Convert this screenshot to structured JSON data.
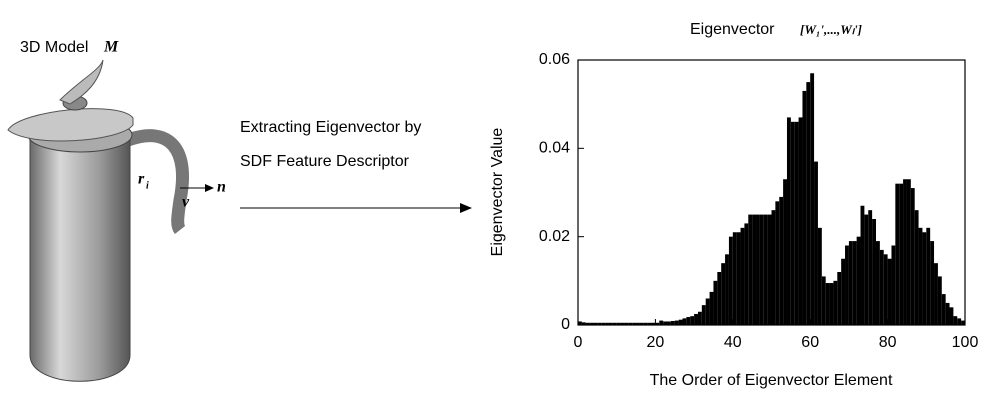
{
  "model_panel": {
    "label": "3D Model",
    "symbol": "M",
    "radius_symbol": "r",
    "radius_index": "i",
    "view_symbol": "v",
    "normal_symbol": "n"
  },
  "arrow_caption": [
    "Extracting Eigenvector by",
    "SDF Feature Descriptor"
  ],
  "chart_data": {
    "type": "histogram",
    "title": "Eigenvector",
    "title_formula": "[W₁',...,Wₗ']",
    "x_label": "The Order of Eigenvector Element",
    "y_label": "Eigenvector Value",
    "color": "#000000",
    "bins": [
      0,
      1,
      2,
      3,
      4,
      5,
      6,
      7,
      8,
      9,
      10,
      11,
      12,
      13,
      14,
      15,
      16,
      17,
      18,
      19,
      20,
      21,
      22,
      23,
      24,
      25,
      26,
      27,
      28,
      29,
      30,
      31,
      32,
      33,
      34,
      35,
      36,
      37,
      38,
      39,
      40,
      41,
      42,
      43,
      44,
      45,
      46,
      47,
      48,
      49,
      50,
      51,
      52,
      53,
      54,
      55,
      56,
      57,
      58,
      59,
      60,
      61,
      62,
      63,
      64,
      65,
      66,
      67,
      68,
      69,
      70,
      71,
      72,
      73,
      74,
      75,
      76,
      77,
      78,
      79,
      80,
      81,
      82,
      83,
      84,
      85,
      86,
      87,
      88,
      89,
      90,
      91,
      92,
      93,
      94,
      95,
      96,
      97,
      98,
      99,
      100
    ],
    "values": [
      0.0008,
      0.0006,
      0.0005,
      0.0005,
      0.0005,
      0.0005,
      0.0005,
      0.0005,
      0.0005,
      0.0005,
      0.0005,
      0.0005,
      0.0005,
      0.0005,
      0.0005,
      0.0005,
      0.0005,
      0.0005,
      0.0005,
      0.0005,
      0.0005,
      0.001,
      0.0008,
      0.0008,
      0.0009,
      0.001,
      0.0012,
      0.0015,
      0.0018,
      0.002,
      0.0025,
      0.003,
      0.0045,
      0.006,
      0.0075,
      0.01,
      0.012,
      0.014,
      0.016,
      0.02,
      0.021,
      0.021,
      0.022,
      0.023,
      0.025,
      0.025,
      0.025,
      0.025,
      0.025,
      0.025,
      0.026,
      0.028,
      0.029,
      0.033,
      0.047,
      0.046,
      0.046,
      0.047,
      0.053,
      0.055,
      0.057,
      0.037,
      0.022,
      0.011,
      0.0095,
      0.0095,
      0.01,
      0.012,
      0.015,
      0.018,
      0.019,
      0.019,
      0.02,
      0.027,
      0.025,
      0.026,
      0.024,
      0.019,
      0.017,
      0.016,
      0.015,
      0.018,
      0.032,
      0.032,
      0.033,
      0.033,
      0.031,
      0.026,
      0.022,
      0.021,
      0.022,
      0.019,
      0.014,
      0.011,
      0.007,
      0.005,
      0.004,
      0.002,
      0.0015,
      0.001
    ],
    "xlim": [
      0,
      100
    ],
    "ylim": [
      0,
      0.06
    ],
    "xticks": [
      0,
      20,
      40,
      60,
      80,
      100
    ],
    "yticks": [
      0,
      0.02,
      0.04,
      0.06
    ],
    "grid": false
  }
}
